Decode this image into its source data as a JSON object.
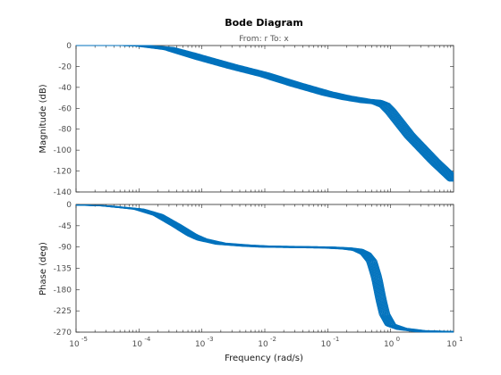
{
  "chart_data": {
    "type": "line",
    "title": "Bode Diagram",
    "subtitle": "From: r  To: x",
    "xlabel": "Frequency  (rad/s)",
    "x_scale": "log",
    "xlim": [
      1e-05,
      10
    ],
    "x_ticks": [
      {
        "value": 1e-05,
        "exp": "-5"
      },
      {
        "value": 0.0001,
        "exp": "-4"
      },
      {
        "value": 0.001,
        "exp": "-3"
      },
      {
        "value": 0.01,
        "exp": "-2"
      },
      {
        "value": 0.1,
        "exp": "-1"
      },
      {
        "value": 1,
        "exp": "0"
      },
      {
        "value": 10,
        "exp": "1"
      }
    ],
    "color": "#0072BD",
    "grid": false,
    "subplots": [
      {
        "name": "magnitude",
        "ylabel": "Magnitude (dB)",
        "ylim": [
          -140,
          0
        ],
        "yticks": [
          0,
          -20,
          -40,
          -60,
          -80,
          -100,
          -120,
          -140
        ],
        "nominal": {
          "x": [
            1e-05,
            0.0001,
            0.0003,
            0.001,
            0.003,
            0.01,
            0.03,
            0.1,
            0.2,
            0.4,
            0.6,
            0.8,
            1,
            2,
            5,
            10
          ],
          "y": [
            0,
            0,
            -3,
            -12,
            -20,
            -28,
            -37,
            -46,
            -50,
            -53,
            -54,
            -57,
            -63,
            -86,
            -111,
            -128
          ]
        }
      },
      {
        "name": "phase",
        "ylabel": "Phase (deg)",
        "ylim": [
          -270,
          0
        ],
        "yticks": [
          0,
          -45,
          -90,
          -135,
          -180,
          -225,
          -270
        ],
        "nominal": {
          "x": [
            1e-05,
            3e-05,
            0.0001,
            0.0002,
            0.0004,
            0.0007,
            0.001,
            0.002,
            0.005,
            0.01,
            0.03,
            0.1,
            0.2,
            0.3,
            0.4,
            0.5,
            0.6,
            0.7,
            0.8,
            1,
            1.5,
            3,
            10
          ],
          "y": [
            -1,
            -3,
            -10,
            -22,
            -45,
            -65,
            -74,
            -83,
            -87,
            -89,
            -90,
            -91,
            -93,
            -96,
            -104,
            -120,
            -155,
            -200,
            -232,
            -255,
            -263,
            -268,
            -270
          ]
        }
      }
    ]
  }
}
